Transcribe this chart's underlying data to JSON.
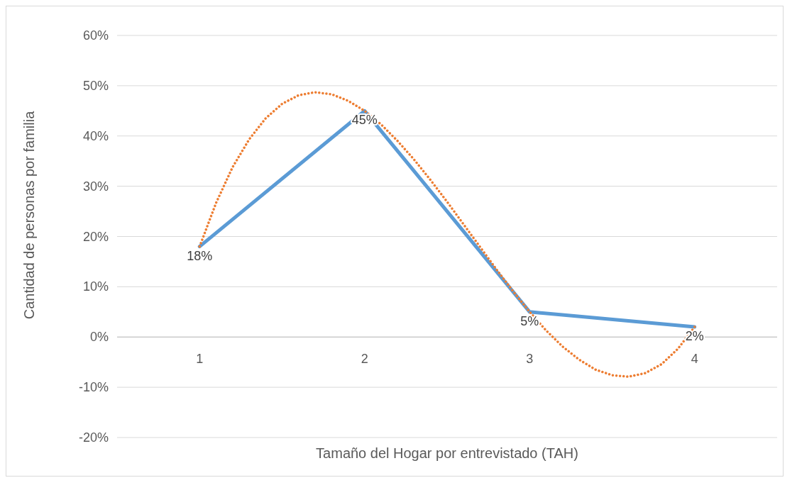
{
  "chart_data": {
    "type": "line",
    "xlabel": "Tamaño del Hogar por entrevistado (TAH)",
    "ylabel": "Cantidad de personas por familia",
    "x": [
      1,
      2,
      3,
      4
    ],
    "xlim": [
      0.5,
      4.5
    ],
    "xticks": [
      1,
      2,
      3,
      4
    ],
    "ylim": [
      -20,
      60
    ],
    "yticks": [
      {
        "value": -20,
        "label": "-20%"
      },
      {
        "value": -10,
        "label": "-10%"
      },
      {
        "value": 0,
        "label": "0%"
      },
      {
        "value": 10,
        "label": "10%"
      },
      {
        "value": 20,
        "label": "20%"
      },
      {
        "value": 30,
        "label": "30%"
      },
      {
        "value": 40,
        "label": "40%"
      },
      {
        "value": 50,
        "label": "50%"
      },
      {
        "value": 60,
        "label": "60%"
      }
    ],
    "grid": "y",
    "marker": "none",
    "series": [
      {
        "color": "#5b9bd5",
        "values": [
          18,
          45,
          5,
          2
        ],
        "value_labels": [
          "18%",
          "45%",
          "5%",
          "2%"
        ],
        "line_style": "solid"
      },
      {
        "type": "line",
        "color": "#ed7d31",
        "line_style": "dotted",
        "x": [
          1,
          1.1,
          1.2,
          1.3,
          1.4,
          1.5,
          1.6,
          1.7,
          1.8,
          1.9,
          2,
          2.1,
          2.2,
          2.3,
          2.4,
          2.5,
          2.6,
          2.7,
          2.8,
          2.9,
          3,
          3.1,
          3.2,
          3.3,
          3.4,
          3.5,
          3.6,
          3.7,
          3.8,
          3.9,
          4
        ],
        "values": [
          18,
          26.7,
          33.8,
          39.3,
          43.5,
          46.4,
          48.1,
          48.7,
          48.3,
          47,
          45,
          42.3,
          39,
          35.3,
          31.2,
          26.9,
          22.4,
          17.9,
          13.4,
          9.1,
          5,
          1.3,
          -1.9,
          -4.5,
          -6.5,
          -7.6,
          -7.9,
          -7.2,
          -5.4,
          -2.3,
          2
        ]
      }
    ]
  }
}
